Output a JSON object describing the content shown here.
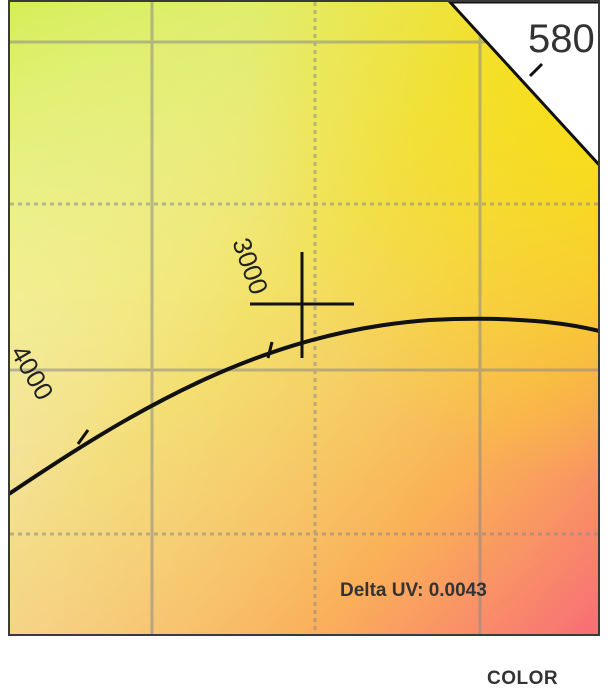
{
  "chart_data": {
    "type": "line",
    "title": "",
    "xlabel": "",
    "ylabel": "",
    "grid": true,
    "series": [
      {
        "values": [
          {
            "cct": 4000,
            "label": "4000"
          },
          {
            "cct": 3000,
            "label": "3000"
          }
        ]
      }
    ],
    "spectral_locus_label": "580",
    "marker": "crosshair",
    "annotation": "Delta UV: 0.0043",
    "colors": {
      "top_left": "#d8ee5a",
      "top_right": "#f4e21a",
      "mid_right": "#fbb83a",
      "bottom_right": "#f7737a",
      "bottom_left": "#f3e4ee",
      "grid": "#8a8a8a",
      "curve": "#111111"
    }
  },
  "footer": {
    "label": "COLOR"
  }
}
